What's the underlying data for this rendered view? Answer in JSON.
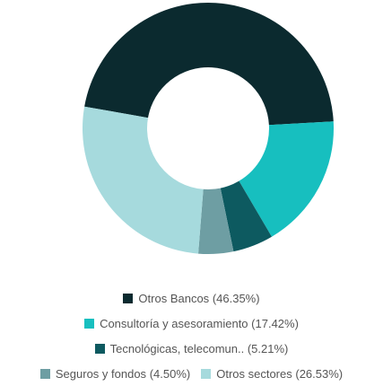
{
  "chart_data": {
    "type": "donut",
    "categories": [
      "Otros Bancos",
      "Consultoría y asesoramiento",
      "Tecnológicas, telecomun..",
      "Seguros y fondos",
      "Otros sectores"
    ],
    "values": [
      46.35,
      17.42,
      5.21,
      4.5,
      26.53
    ],
    "value_labels": [
      "(46.35%)",
      "(17.42%)",
      "(5.21%)",
      "(4.50%)",
      "(26.53%)"
    ],
    "colors": [
      "#0b2a2f",
      "#17bfbf",
      "#0d5a60",
      "#6e9ea3",
      "#a6dadd"
    ]
  }
}
